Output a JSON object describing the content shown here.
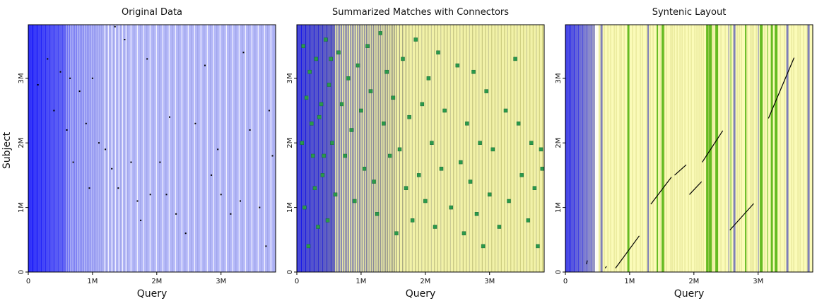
{
  "figure": {
    "ylabel": "Subject"
  },
  "chart_data": [
    {
      "type": "scatter",
      "title": "Original Data",
      "xlabel": "Query",
      "ylabel": "Subject",
      "xlim": [
        0,
        3850000
      ],
      "ylim": [
        0,
        3830000
      ],
      "x_ticks": [
        {
          "value": 0,
          "label": "0"
        },
        {
          "value": 1000000,
          "label": "1M"
        },
        {
          "value": 2000000,
          "label": "2M"
        },
        {
          "value": 3000000,
          "label": "3M"
        }
      ],
      "y_ticks": [
        {
          "value": 0,
          "label": "0"
        },
        {
          "value": 1000000,
          "label": "1M"
        },
        {
          "value": 2000000,
          "label": "2M"
        },
        {
          "value": 3000000,
          "label": "3M"
        }
      ],
      "background": "dense vertical contig boundary lines, blue fading toward lavender",
      "grid": false,
      "series": [
        {
          "values": [
            [
              150000,
              2900000
            ],
            [
              300000,
              3300000
            ],
            [
              400000,
              2500000
            ],
            [
              500000,
              3100000
            ],
            [
              600000,
              2200000
            ],
            [
              650000,
              3000000
            ],
            [
              700000,
              1700000
            ],
            [
              800000,
              2800000
            ],
            [
              900000,
              2300000
            ],
            [
              950000,
              1300000
            ],
            [
              1000000,
              3000000
            ],
            [
              1100000,
              2000000
            ],
            [
              1200000,
              1900000
            ],
            [
              1300000,
              1600000
            ],
            [
              1400000,
              1300000
            ],
            [
              1350000,
              3800000
            ],
            [
              1500000,
              3600000
            ],
            [
              1600000,
              1700000
            ],
            [
              1700000,
              1100000
            ],
            [
              1750000,
              800000
            ],
            [
              1850000,
              3300000
            ],
            [
              1900000,
              1200000
            ],
            [
              2050000,
              1700000
            ],
            [
              2150000,
              1200000
            ],
            [
              2200000,
              2400000
            ],
            [
              2300000,
              900000
            ],
            [
              2450000,
              600000
            ],
            [
              2600000,
              2300000
            ],
            [
              2750000,
              3200000
            ],
            [
              2850000,
              1500000
            ],
            [
              2950000,
              1900000
            ],
            [
              3000000,
              1200000
            ],
            [
              3150000,
              900000
            ],
            [
              3300000,
              1100000
            ],
            [
              3350000,
              3400000
            ],
            [
              3450000,
              2200000
            ],
            [
              3600000,
              1000000
            ],
            [
              3700000,
              400000
            ],
            [
              3750000,
              2500000
            ],
            [
              3800000,
              1800000
            ]
          ]
        }
      ]
    },
    {
      "type": "scatter",
      "title": "Summarized Matches with Connectors",
      "xlabel": "Query",
      "ylabel": "",
      "xlim": [
        0,
        3850000
      ],
      "ylim": [
        0,
        3830000
      ],
      "x_ticks": [
        {
          "value": 0,
          "label": "0"
        },
        {
          "value": 1000000,
          "label": "1M"
        },
        {
          "value": 2000000,
          "label": "2M"
        },
        {
          "value": 3000000,
          "label": "3M"
        }
      ],
      "y_ticks": [
        {
          "value": 0,
          "label": "0"
        },
        {
          "value": 1000000,
          "label": "1M"
        },
        {
          "value": 2000000,
          "label": "2M"
        },
        {
          "value": 3000000,
          "label": "3M"
        }
      ],
      "background": "dense vertical contig boundary lines, blue fading to yellow",
      "grid": false,
      "series": [
        {
          "values": [
            [
              100000,
              3500000
            ],
            [
              150000,
              2700000
            ],
            [
              200000,
              3100000
            ],
            [
              250000,
              1800000
            ],
            [
              300000,
              3300000
            ],
            [
              350000,
              2400000
            ],
            [
              400000,
              1500000
            ],
            [
              450000,
              3600000
            ],
            [
              500000,
              2900000
            ],
            [
              550000,
              2000000
            ],
            [
              600000,
              1200000
            ],
            [
              650000,
              3400000
            ],
            [
              700000,
              2600000
            ],
            [
              750000,
              1800000
            ],
            [
              800000,
              3000000
            ],
            [
              850000,
              2200000
            ],
            [
              900000,
              1100000
            ],
            [
              950000,
              3200000
            ],
            [
              1000000,
              2500000
            ],
            [
              1050000,
              1600000
            ],
            [
              1100000,
              3500000
            ],
            [
              1150000,
              2800000
            ],
            [
              1200000,
              1400000
            ],
            [
              1250000,
              900000
            ],
            [
              1300000,
              3700000
            ],
            [
              1350000,
              2300000
            ],
            [
              1400000,
              3100000
            ],
            [
              1450000,
              1800000
            ],
            [
              1500000,
              2700000
            ],
            [
              1550000,
              600000
            ],
            [
              1600000,
              1900000
            ],
            [
              1650000,
              3300000
            ],
            [
              1700000,
              1300000
            ],
            [
              1750000,
              2400000
            ],
            [
              1800000,
              800000
            ],
            [
              1850000,
              3600000
            ],
            [
              1900000,
              1500000
            ],
            [
              1950000,
              2600000
            ],
            [
              2000000,
              1100000
            ],
            [
              2050000,
              3000000
            ],
            [
              2100000,
              2000000
            ],
            [
              2150000,
              700000
            ],
            [
              2200000,
              3400000
            ],
            [
              2250000,
              1600000
            ],
            [
              2300000,
              2500000
            ],
            [
              2400000,
              1000000
            ],
            [
              2500000,
              3200000
            ],
            [
              2550000,
              1700000
            ],
            [
              2600000,
              600000
            ],
            [
              2650000,
              2300000
            ],
            [
              2700000,
              1400000
            ],
            [
              2750000,
              3100000
            ],
            [
              2800000,
              900000
            ],
            [
              2850000,
              2000000
            ],
            [
              2900000,
              400000
            ],
            [
              2950000,
              2800000
            ],
            [
              3000000,
              1200000
            ],
            [
              3050000,
              1900000
            ],
            [
              3150000,
              700000
            ],
            [
              3250000,
              2500000
            ],
            [
              3300000,
              1100000
            ],
            [
              3400000,
              3300000
            ],
            [
              3450000,
              2300000
            ],
            [
              3500000,
              1500000
            ],
            [
              3600000,
              800000
            ],
            [
              3650000,
              2000000
            ],
            [
              3700000,
              1300000
            ],
            [
              3750000,
              400000
            ],
            [
              3800000,
              1900000
            ],
            [
              3820000,
              1600000
            ],
            [
              80000,
              2000000
            ],
            [
              120000,
              1000000
            ],
            [
              180000,
              400000
            ],
            [
              230000,
              2300000
            ],
            [
              280000,
              1300000
            ],
            [
              330000,
              700000
            ],
            [
              380000,
              2600000
            ],
            [
              420000,
              1800000
            ],
            [
              480000,
              800000
            ],
            [
              530000,
              3300000
            ]
          ]
        }
      ]
    },
    {
      "type": "line",
      "title": "Syntenic Layout",
      "xlabel": "Query",
      "ylabel": "",
      "xlim": [
        0,
        3850000
      ],
      "ylim": [
        0,
        3830000
      ],
      "x_ticks": [
        {
          "value": 0,
          "label": "0"
        },
        {
          "value": 1000000,
          "label": "1M"
        },
        {
          "value": 2000000,
          "label": "2M"
        },
        {
          "value": 3000000,
          "label": "3M"
        }
      ],
      "y_ticks": [
        {
          "value": 0,
          "label": "0"
        },
        {
          "value": 1000000,
          "label": "1M"
        },
        {
          "value": 2000000,
          "label": "2M"
        },
        {
          "value": 3000000,
          "label": "3M"
        }
      ],
      "background": "contig boundary lines, blue on the left then yellow bands with green and blue stripes",
      "grid": false,
      "series": [
        {
          "values": [
            [
              780000,
              60000
            ],
            [
              1150000,
              560000
            ]
          ]
        },
        {
          "values": [
            [
              1330000,
              1050000
            ],
            [
              1650000,
              1470000
            ]
          ]
        },
        {
          "values": [
            [
              1700000,
              1500000
            ],
            [
              1880000,
              1660000
            ]
          ]
        },
        {
          "values": [
            [
              1930000,
              1200000
            ],
            [
              2120000,
              1400000
            ]
          ]
        },
        {
          "values": [
            [
              2130000,
              1700000
            ],
            [
              2450000,
              2190000
            ]
          ]
        },
        {
          "values": [
            [
              2560000,
              650000
            ],
            [
              2930000,
              1060000
            ]
          ]
        },
        {
          "values": [
            [
              3160000,
              2380000
            ],
            [
              3560000,
              3320000
            ]
          ]
        },
        {
          "values": [
            [
              330000,
              120000
            ],
            [
              340000,
              180000
            ]
          ]
        },
        {
          "values": [
            [
              620000,
              60000
            ],
            [
              640000,
              90000
            ]
          ]
        }
      ]
    }
  ]
}
